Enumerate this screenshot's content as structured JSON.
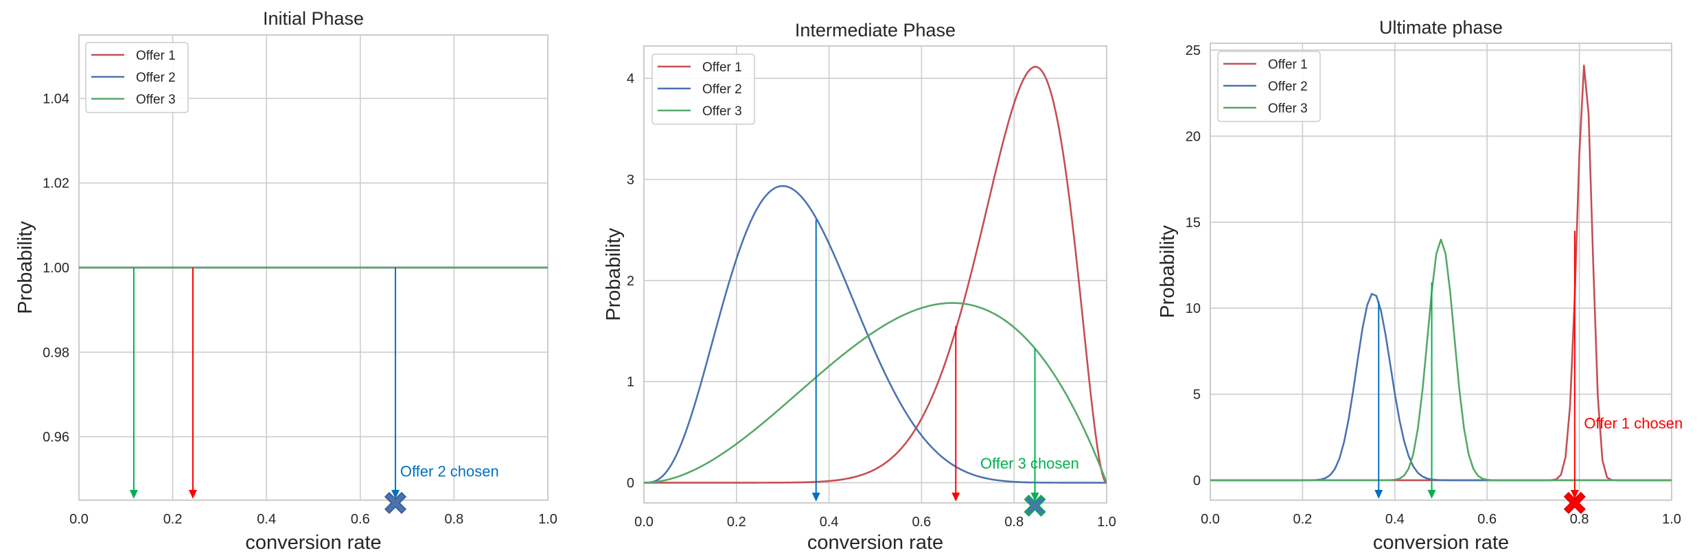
{
  "chart_data": [
    {
      "type": "line",
      "title": "Initial Phase",
      "xlabel": "conversion rate",
      "ylabel": "Probability",
      "xlim": [
        0.0,
        1.0
      ],
      "ylim": [
        0.945,
        1.055
      ],
      "xticks": [
        "0.0",
        "0.2",
        "0.4",
        "0.6",
        "0.8",
        "1.0"
      ],
      "xtick_values": [
        0,
        0.2,
        0.4,
        0.6,
        0.8,
        1.0
      ],
      "yticks": [
        "0.96",
        "0.98",
        "1.00",
        "1.02",
        "1.04"
      ],
      "ytick_values": [
        0.96,
        0.98,
        1.0,
        1.02,
        1.04
      ],
      "grid": true,
      "legend": "top-left",
      "series": [
        {
          "name": "Offer 1",
          "color": "#c44e52",
          "distribution": "beta",
          "a": 1,
          "b": 1,
          "peak": [
            0.5,
            1.0
          ]
        },
        {
          "name": "Offer 2",
          "color": "#4c72b0",
          "distribution": "beta",
          "a": 1,
          "b": 1,
          "peak": [
            0.5,
            1.0
          ]
        },
        {
          "name": "Offer 3",
          "color": "#55a868",
          "distribution": "beta",
          "a": 1,
          "b": 1,
          "peak": [
            0.5,
            1.0
          ]
        }
      ],
      "samples": [
        {
          "offer": "Offer 3",
          "x": 0.117,
          "y_from": 1.0,
          "color": "#00b050"
        },
        {
          "offer": "Offer 1",
          "x": 0.243,
          "y_from": 1.0,
          "color": "#ff0000"
        },
        {
          "offer": "Offer 2",
          "x": 0.675,
          "y_from": 1.0,
          "color": "#0070c0"
        }
      ],
      "chosen": {
        "x": 0.675,
        "face": "#4c72b0",
        "edge": "#3b5f96",
        "label": "Offer 2 chosen",
        "label_x": 0.685,
        "label_y": 0.9506,
        "color": "#0070c0"
      }
    },
    {
      "type": "line",
      "title": "Intermediate Phase",
      "xlabel": "conversion rate",
      "ylabel": "Probability",
      "xlim": [
        0.0,
        1.0
      ],
      "ylim": [
        -0.2,
        4.32
      ],
      "xticks": [
        "0.0",
        "0.2",
        "0.4",
        "0.6",
        "0.8",
        "1.0"
      ],
      "xtick_values": [
        0,
        0.2,
        0.4,
        0.6,
        0.8,
        1.0
      ],
      "yticks": [
        "0",
        "1",
        "2",
        "3",
        "4"
      ],
      "ytick_values": [
        0,
        1,
        2,
        3,
        4
      ],
      "grid": true,
      "legend": "top-left",
      "series": [
        {
          "name": "Offer 1",
          "color": "#c44e52",
          "distribution": "beta",
          "a": 12,
          "b": 3,
          "peak": [
            0.846,
            4.12
          ]
        },
        {
          "name": "Offer 2",
          "color": "#4c72b0",
          "distribution": "beta",
          "a": 4,
          "b": 8,
          "peak": [
            0.3,
            2.94
          ]
        },
        {
          "name": "Offer 3",
          "color": "#55a868",
          "distribution": "beta",
          "a": 3,
          "b": 2,
          "peak": [
            0.667,
            1.78
          ]
        }
      ],
      "samples": [
        {
          "offer": "Offer 2",
          "x": 0.372,
          "y_from": 2.6,
          "color": "#0070c0"
        },
        {
          "offer": "Offer 1",
          "x": 0.674,
          "y_from": 1.55,
          "color": "#ff0000"
        },
        {
          "offer": "Offer 3",
          "x": 0.845,
          "y_from": 1.33,
          "color": "#00b050"
        }
      ],
      "chosen": {
        "x": 0.845,
        "face": "#4c72b0",
        "edge": "#00b050",
        "label": "Offer 3 chosen",
        "label_x": 0.727,
        "label_y": 0.14,
        "color": "#00b050"
      }
    },
    {
      "type": "line",
      "title": "Ultimate phase",
      "xlabel": "conversion rate",
      "ylabel": "Probability",
      "xlim": [
        0.0,
        1.0
      ],
      "ylim": [
        -1.16,
        25.4
      ],
      "xticks": [
        "0.0",
        "0.2",
        "0.4",
        "0.6",
        "0.8",
        "1.0"
      ],
      "xtick_values": [
        0,
        0.2,
        0.4,
        0.6,
        0.8,
        1.0
      ],
      "yticks": [
        "0",
        "5",
        "10",
        "15",
        "20",
        "25"
      ],
      "ytick_values": [
        0,
        5,
        10,
        15,
        20,
        25
      ],
      "grid": true,
      "legend": "top-left",
      "series": [
        {
          "name": "Offer 1",
          "color": "#c44e52",
          "distribution": "beta",
          "a": 458,
          "b": 107,
          "peak": [
            0.81,
            24.2
          ]
        },
        {
          "name": "Offer 2",
          "color": "#4c72b0",
          "distribution": "beta",
          "a": 60.6,
          "b": 110,
          "peak": [
            0.355,
            10.9
          ]
        },
        {
          "name": "Offer 3",
          "color": "#55a868",
          "distribution": "beta",
          "a": 154,
          "b": 154,
          "peak": [
            0.5,
            14.0
          ]
        }
      ],
      "samples": [
        {
          "offer": "Offer 2",
          "x": 0.365,
          "y_from": 10.4,
          "color": "#0070c0"
        },
        {
          "offer": "Offer 3",
          "x": 0.48,
          "y_from": 11.5,
          "color": "#00b050"
        },
        {
          "offer": "Offer 1",
          "x": 0.79,
          "y_from": 14.5,
          "color": "#ff0000"
        }
      ],
      "chosen": {
        "x": 0.79,
        "face": "#ff0000",
        "edge": "#e00000",
        "label": "Offer 1 chosen",
        "label_x": 0.81,
        "label_y": 3.0,
        "color": "#ff0000"
      }
    }
  ]
}
